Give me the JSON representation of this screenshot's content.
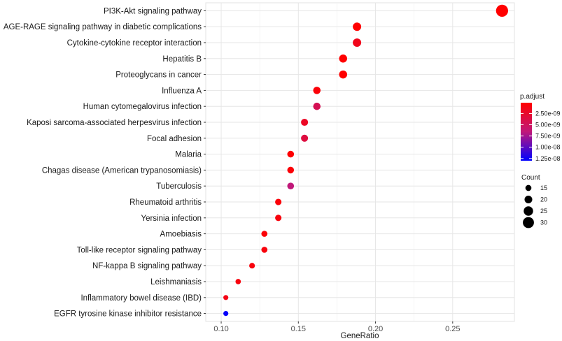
{
  "chart_data": {
    "type": "scatter",
    "xlabel": "GeneRatio",
    "xlim": [
      0.09,
      0.29
    ],
    "xticks": [
      0.1,
      0.15,
      0.2,
      0.25
    ],
    "xtick_labels": [
      "0.10",
      "0.15",
      "0.20",
      "0.25"
    ],
    "grid": true,
    "legend_position": "right",
    "color_scale": {
      "title": "p.adjust",
      "low_color": "#ff0000",
      "high_color": "#0000ff",
      "range": [
        1e-10,
        1.3e-08
      ],
      "ticks": [
        2.5e-09,
        5e-09,
        7.5e-09,
        1e-08,
        1.25e-08
      ],
      "tick_labels": [
        "2.50e-09",
        "5.00e-09",
        "7.50e-09",
        "1.00e-08",
        "1.25e-08"
      ]
    },
    "size_legend": {
      "title": "Count",
      "values": [
        15,
        20,
        25,
        30
      ],
      "labels": [
        "15",
        "20",
        "25",
        "30"
      ]
    },
    "points": [
      {
        "term": "PI3K-Akt signaling pathway",
        "gene_ratio": 0.282,
        "count": 33,
        "p_adjust": 1e-10
      },
      {
        "term": "AGE-RAGE signaling pathway in diabetic complications",
        "gene_ratio": 0.188,
        "count": 22,
        "p_adjust": 1e-10
      },
      {
        "term": "Cytokine-cytokine receptor interaction",
        "gene_ratio": 0.188,
        "count": 22,
        "p_adjust": 1.5e-09
      },
      {
        "term": "Hepatitis B",
        "gene_ratio": 0.179,
        "count": 21,
        "p_adjust": 1e-10
      },
      {
        "term": "Proteoglycans in cancer",
        "gene_ratio": 0.179,
        "count": 21,
        "p_adjust": 1e-10
      },
      {
        "term": "Influenza A",
        "gene_ratio": 0.162,
        "count": 19,
        "p_adjust": 5e-10
      },
      {
        "term": "Human cytomegalovirus infection",
        "gene_ratio": 0.162,
        "count": 19,
        "p_adjust": 4.5e-09
      },
      {
        "term": "Kaposi sarcoma-associated herpesvirus infection",
        "gene_ratio": 0.154,
        "count": 18,
        "p_adjust": 2e-09
      },
      {
        "term": "Focal adhesion",
        "gene_ratio": 0.154,
        "count": 18,
        "p_adjust": 3.5e-09
      },
      {
        "term": "Malaria",
        "gene_ratio": 0.145,
        "count": 17,
        "p_adjust": 2e-10
      },
      {
        "term": "Chagas disease (American trypanosomiasis)",
        "gene_ratio": 0.145,
        "count": 17,
        "p_adjust": 5e-10
      },
      {
        "term": "Tuberculosis",
        "gene_ratio": 0.145,
        "count": 17,
        "p_adjust": 6.5e-09
      },
      {
        "term": "Rheumatoid arthritis",
        "gene_ratio": 0.137,
        "count": 16,
        "p_adjust": 5e-10
      },
      {
        "term": "Yersinia infection",
        "gene_ratio": 0.137,
        "count": 16,
        "p_adjust": 8e-10
      },
      {
        "term": "Amoebiasis",
        "gene_ratio": 0.128,
        "count": 15,
        "p_adjust": 5e-10
      },
      {
        "term": "Toll-like receptor signaling pathway",
        "gene_ratio": 0.128,
        "count": 15,
        "p_adjust": 8e-10
      },
      {
        "term": "NF-kappa B signaling pathway",
        "gene_ratio": 0.12,
        "count": 14,
        "p_adjust": 8e-10
      },
      {
        "term": "Leishmaniasis",
        "gene_ratio": 0.111,
        "count": 13,
        "p_adjust": 8e-10
      },
      {
        "term": "Inflammatory bowel disease (IBD)",
        "gene_ratio": 0.103,
        "count": 12,
        "p_adjust": 1.2e-09
      },
      {
        "term": "EGFR tyrosine kinase inhibitor resistance",
        "gene_ratio": 0.103,
        "count": 12,
        "p_adjust": 1.28e-08
      }
    ]
  }
}
